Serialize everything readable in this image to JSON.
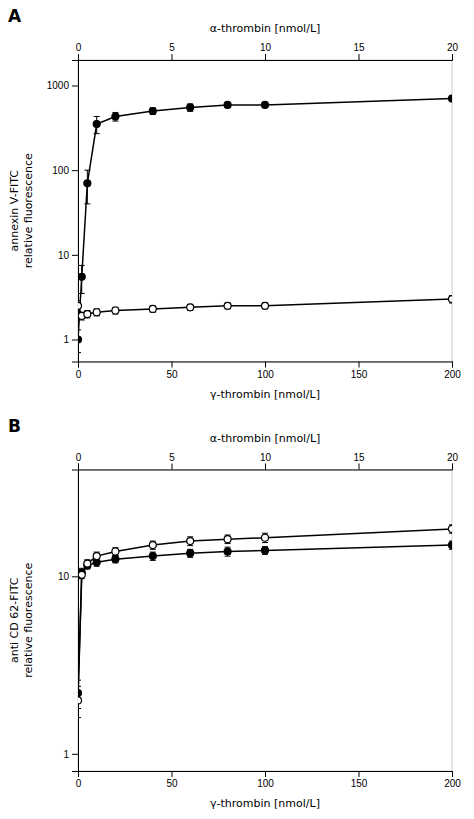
{
  "chart_data": [
    {
      "type": "line",
      "title": "A",
      "xlabel": "γ-thrombin [nmol/L]",
      "x2label": "α-thrombin [nmol/L]",
      "ylabel": "annexin V-FITC\nrelative fluorescence",
      "log": "y",
      "xlim": [
        0,
        200
      ],
      "xticks": [
        0,
        50,
        100,
        150,
        200
      ],
      "x2lim": [
        0,
        20
      ],
      "x2ticks": [
        0,
        5,
        10,
        15,
        20
      ],
      "ylim": [
        0.55,
        2000
      ],
      "yticks": [
        1,
        10,
        100,
        1000
      ],
      "series": [
        {
          "color": "#000000",
          "marker": "circle",
          "line_style": "solid",
          "x": [
            0,
            2,
            5,
            10,
            20,
            40,
            60,
            80,
            100,
            200
          ],
          "values": [
            1.0,
            5.5,
            70.0,
            350.0,
            430.0,
            500.0,
            550.0,
            590.0,
            590.0,
            700.0
          ],
          "errors": [
            0.3,
            2.0,
            30.0,
            80.0,
            50.0,
            45.0,
            55.0,
            40.0,
            35.0,
            50.0
          ]
        },
        {
          "color": "#000000",
          "marker": "circle-open",
          "line_style": "solid",
          "x": [
            0,
            2,
            5,
            10,
            20,
            40,
            60,
            80,
            100,
            200
          ],
          "values": [
            2.5,
            1.9,
            2.0,
            2.1,
            2.2,
            2.3,
            2.4,
            2.5,
            2.5,
            3.0
          ],
          "errors": [
            0.4,
            0.2,
            0.2,
            0.2,
            0.2,
            0.2,
            0.2,
            0.2,
            0.2,
            0.3
          ]
        }
      ]
    },
    {
      "type": "line",
      "title": "B",
      "xlabel": "γ-thrombin [nmol/L]",
      "x2label": "α-thrombin [nmol/L]",
      "ylabel": "anti CD 62-FITC\nrelative fluorescence",
      "log": "y",
      "xlim": [
        0,
        200
      ],
      "xticks": [
        0,
        50,
        100,
        150,
        200
      ],
      "x2lim": [
        0,
        20
      ],
      "x2ticks": [
        0,
        5,
        10,
        15,
        20
      ],
      "ylim": [
        0.8,
        40
      ],
      "yticks": [
        1,
        10
      ],
      "series": [
        {
          "color": "#000000",
          "marker": "circle",
          "line_style": "solid",
          "x": [
            0,
            2,
            5,
            10,
            20,
            40,
            60,
            80,
            100,
            200
          ],
          "values": [
            2.2,
            10.5,
            11.5,
            12.0,
            12.5,
            13.0,
            13.5,
            13.8,
            14.0,
            15.0
          ],
          "errors": [
            0.4,
            0.6,
            0.5,
            0.6,
            0.6,
            0.7,
            0.7,
            0.8,
            0.7,
            0.8
          ]
        },
        {
          "color": "#000000",
          "marker": "circle-open",
          "line_style": "solid",
          "x": [
            0,
            2,
            5,
            10,
            20,
            40,
            60,
            80,
            100,
            200
          ],
          "values": [
            2.0,
            10.2,
            11.8,
            13.0,
            13.8,
            15.0,
            15.8,
            16.2,
            16.5,
            18.5
          ],
          "errors": [
            0.4,
            0.5,
            0.6,
            0.7,
            0.7,
            0.8,
            0.9,
            0.9,
            1.0,
            1.0
          ]
        }
      ]
    }
  ]
}
